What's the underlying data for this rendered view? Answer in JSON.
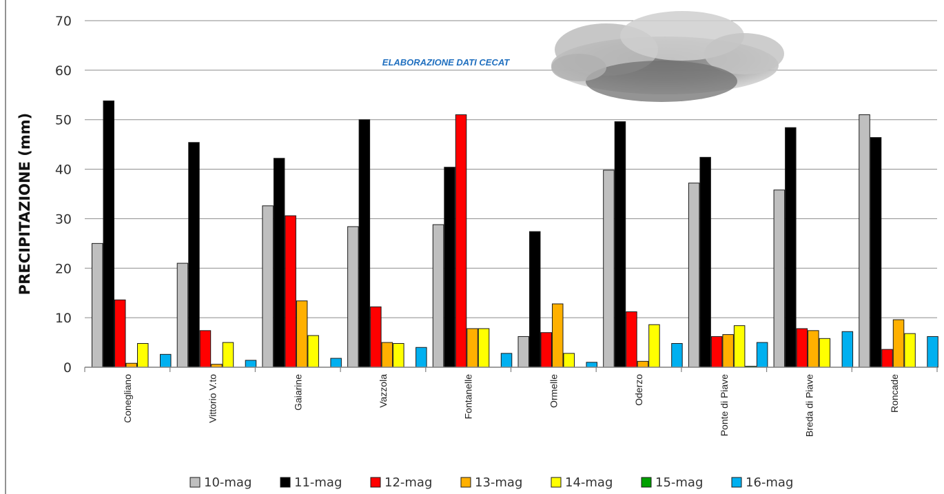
{
  "chart_data": {
    "type": "bar",
    "title": "",
    "xlabel": "",
    "ylabel": "PRECIPITAZIONE (mm)",
    "ylim": [
      0,
      70
    ],
    "yticks": [
      0,
      10,
      20,
      30,
      40,
      50,
      60,
      70
    ],
    "grid": true,
    "legend_position": "bottom",
    "annotation": "ELABORAZIONE DATI CECAT",
    "categories": [
      "Conegliano",
      "Vittorio V.to",
      "Gaiarine",
      "Vazzola",
      "Fontanelle",
      "Ormelle",
      "Oderzo",
      "Ponte di Piave",
      "Breda di Piave",
      "Roncade"
    ],
    "series": [
      {
        "name": "10-mag",
        "color": "#bfbfbf",
        "values": [
          25.0,
          21.0,
          32.6,
          28.4,
          28.8,
          6.2,
          39.8,
          37.2,
          35.8,
          51.0
        ]
      },
      {
        "name": "11-mag",
        "color": "#000000",
        "values": [
          53.8,
          45.4,
          42.2,
          50.0,
          40.4,
          27.4,
          49.6,
          42.4,
          48.4,
          46.4
        ]
      },
      {
        "name": "12-mag",
        "color": "#ff0000",
        "values": [
          13.6,
          7.4,
          30.6,
          12.2,
          51.0,
          7.0,
          11.2,
          6.2,
          7.8,
          3.6
        ]
      },
      {
        "name": "13-mag",
        "color": "#ffb000",
        "values": [
          0.8,
          0.6,
          13.4,
          5.0,
          7.8,
          12.8,
          1.2,
          6.6,
          7.4,
          9.6
        ]
      },
      {
        "name": "14-mag",
        "color": "#ffff00",
        "values": [
          4.8,
          5.0,
          6.4,
          4.8,
          7.8,
          2.8,
          8.6,
          8.4,
          5.8,
          6.8
        ]
      },
      {
        "name": "15-mag",
        "color": "#00a000",
        "values": [
          0,
          0,
          0,
          0,
          0,
          0,
          0,
          0.2,
          0,
          0
        ]
      },
      {
        "name": "16-mag",
        "color": "#00b0f0",
        "values": [
          2.6,
          1.4,
          1.8,
          4.0,
          2.8,
          1.0,
          4.8,
          5.0,
          7.2,
          6.2
        ]
      }
    ]
  }
}
